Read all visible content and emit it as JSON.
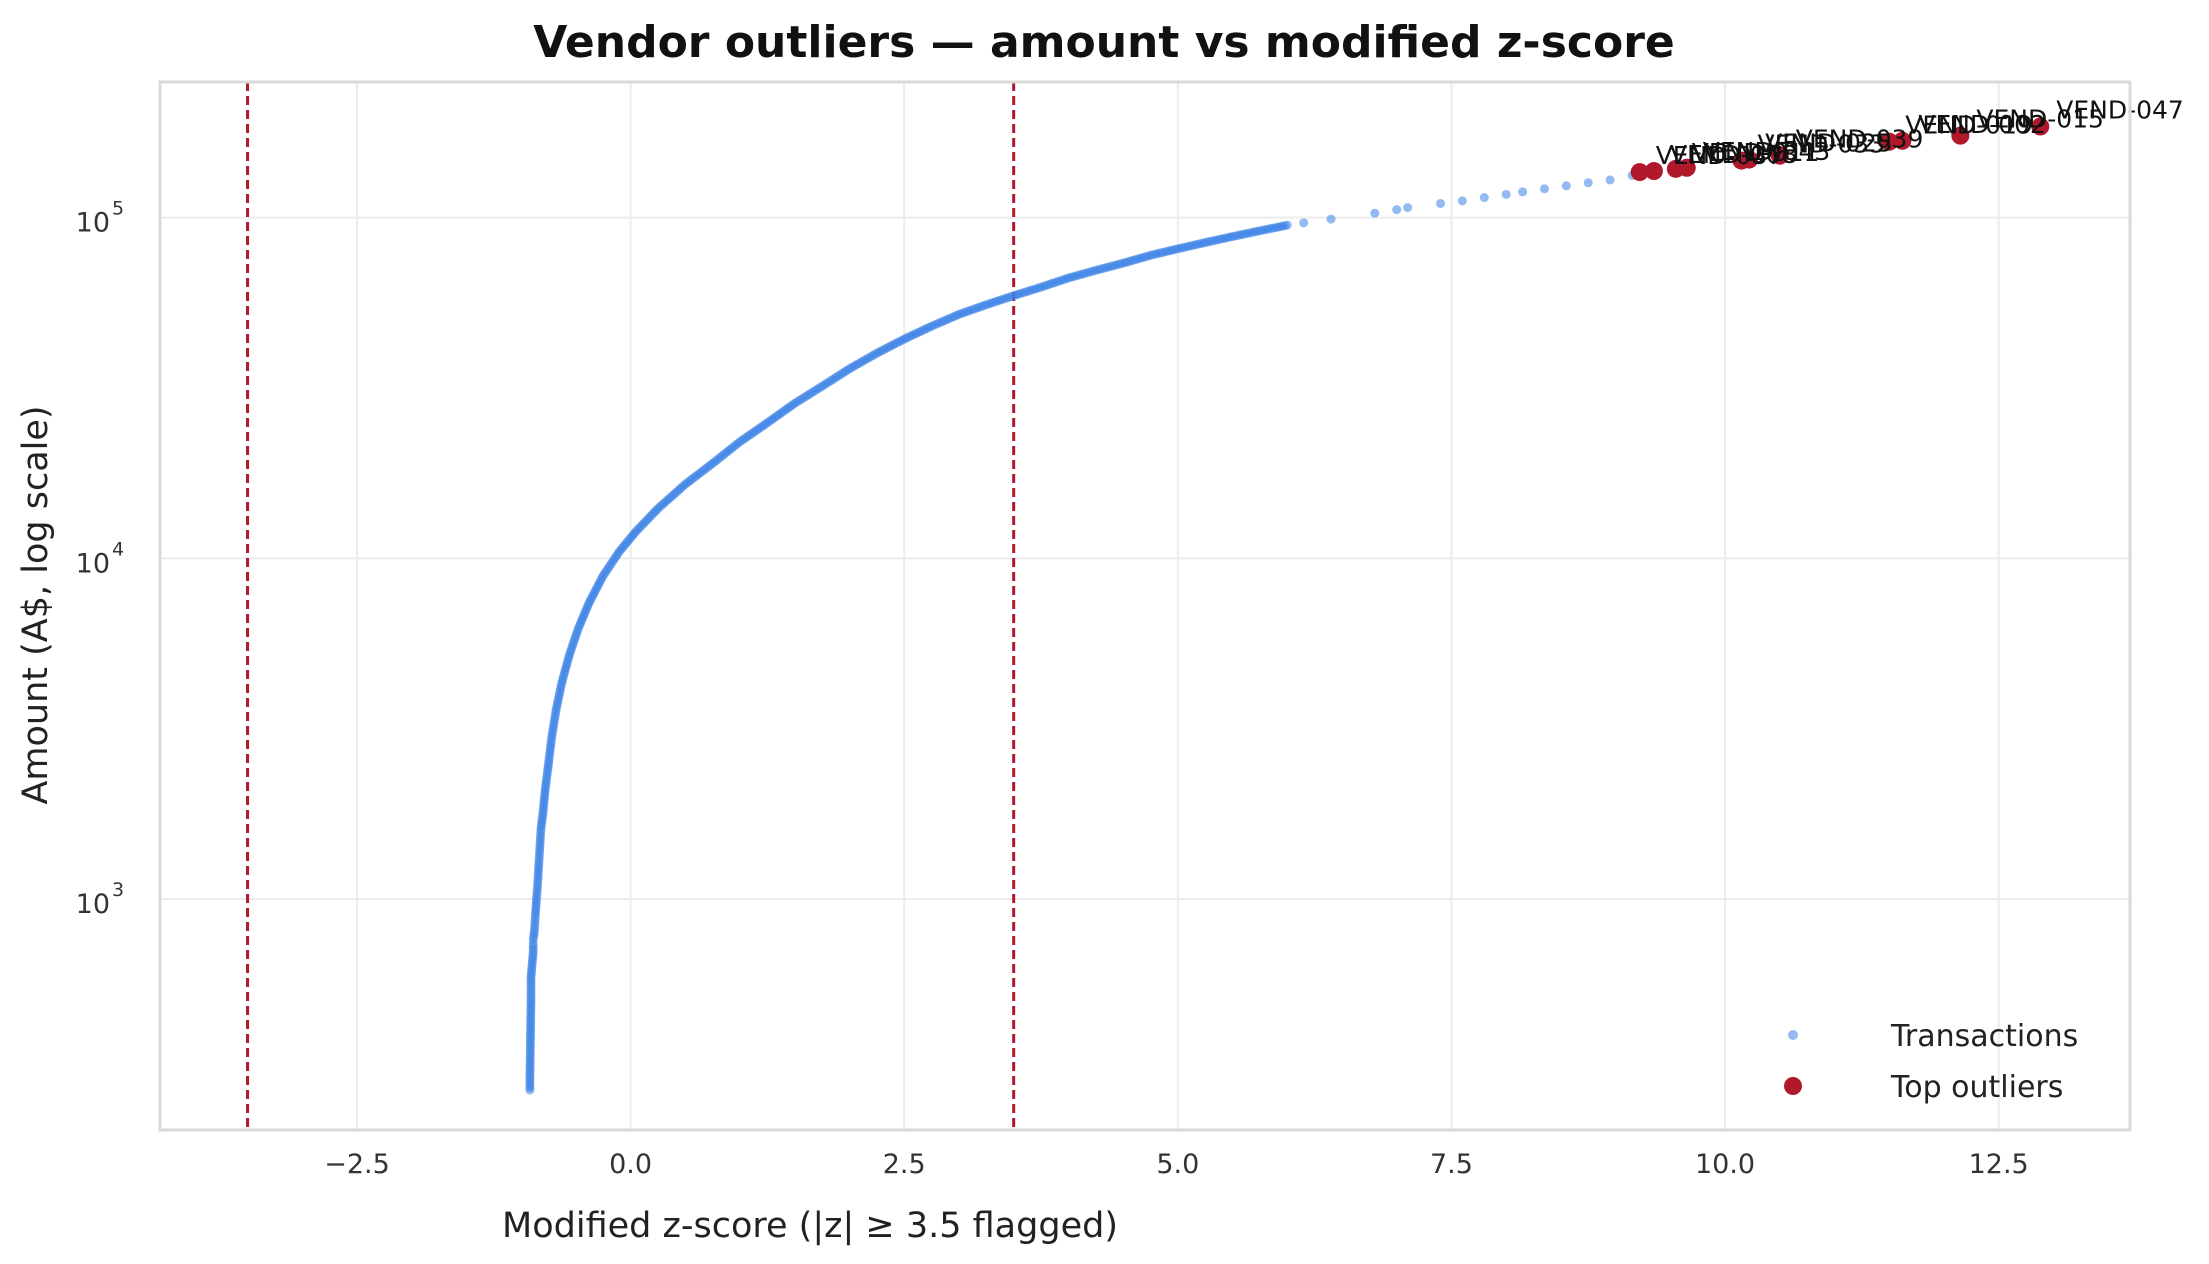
{
  "chart_data": {
    "type": "scatter",
    "title": "Vendor outliers — amount vs modified z-score",
    "xlabel": "Modified z-score (|z| ≥ 3.5 flagged)",
    "ylabel": "Amount (A$, log scale)",
    "xlim": [
      -4.3,
      13.7
    ],
    "ylim": [
      210,
      250000
    ],
    "yscale": "log",
    "grid": true,
    "legend_position": "bottom-right",
    "x_ticks": [
      {
        "value": -2.5,
        "label": "−2.5"
      },
      {
        "value": 0.0,
        "label": "0.0"
      },
      {
        "value": 2.5,
        "label": "2.5"
      },
      {
        "value": 5.0,
        "label": "5.0"
      },
      {
        "value": 7.5,
        "label": "7.5"
      },
      {
        "value": 10.0,
        "label": "10.0"
      },
      {
        "value": 12.5,
        "label": "12.5"
      }
    ],
    "y_ticks": [
      {
        "value": 1000,
        "base": "10",
        "exp": "3"
      },
      {
        "value": 10000,
        "base": "10",
        "exp": "4"
      },
      {
        "value": 100000,
        "base": "10",
        "exp": "5"
      }
    ],
    "threshold_lines": [
      {
        "x": -3.5,
        "color": "#b2182b"
      },
      {
        "x": 3.5,
        "color": "#b2182b"
      }
    ],
    "series": [
      {
        "name": "Transactions",
        "color": "#3b82e6",
        "points": [
          [
            -0.92,
            275
          ],
          [
            -0.92,
            300
          ],
          [
            -0.91,
            510
          ],
          [
            -0.91,
            560
          ],
          [
            -0.91,
            590
          ],
          [
            -0.89,
            700
          ],
          [
            -0.89,
            740
          ],
          [
            -0.89,
            760
          ],
          [
            -0.88,
            800
          ],
          [
            -0.87,
            900
          ],
          [
            -0.86,
            1000
          ],
          [
            -0.85,
            1100
          ],
          [
            -0.84,
            1250
          ],
          [
            -0.83,
            1400
          ],
          [
            -0.82,
            1600
          ],
          [
            -0.8,
            1800
          ],
          [
            -0.78,
            2100
          ],
          [
            -0.75,
            2500
          ],
          [
            -0.72,
            3000
          ],
          [
            -0.68,
            3600
          ],
          [
            -0.63,
            4300
          ],
          [
            -0.56,
            5200
          ],
          [
            -0.48,
            6200
          ],
          [
            -0.38,
            7400
          ],
          [
            -0.25,
            8900
          ],
          [
            -0.1,
            10500
          ],
          [
            0.05,
            12000
          ],
          [
            0.25,
            14000
          ],
          [
            0.5,
            16500
          ],
          [
            0.75,
            19000
          ],
          [
            1.0,
            22000
          ],
          [
            1.25,
            25000
          ],
          [
            1.5,
            28500
          ],
          [
            1.75,
            32000
          ],
          [
            2.0,
            36000
          ],
          [
            2.25,
            40000
          ],
          [
            2.5,
            44000
          ],
          [
            2.75,
            48000
          ],
          [
            3.0,
            52000
          ],
          [
            3.25,
            55500
          ],
          [
            3.5,
            59000
          ],
          [
            3.75,
            62500
          ],
          [
            4.0,
            66500
          ],
          [
            4.25,
            70000
          ],
          [
            4.5,
            73500
          ],
          [
            4.75,
            77500
          ],
          [
            5.0,
            81000
          ],
          [
            5.25,
            84500
          ],
          [
            5.5,
            88000
          ],
          [
            5.75,
            91500
          ],
          [
            6.0,
            95000
          ],
          [
            6.15,
            96500
          ],
          [
            6.4,
            99000
          ],
          [
            6.8,
            103000
          ],
          [
            7.0,
            105500
          ],
          [
            7.1,
            107000
          ],
          [
            7.4,
            110000
          ],
          [
            7.6,
            112000
          ],
          [
            7.8,
            114500
          ],
          [
            8.0,
            117000
          ],
          [
            8.15,
            119000
          ],
          [
            8.35,
            121500
          ],
          [
            8.55,
            124000
          ],
          [
            8.75,
            126500
          ],
          [
            8.95,
            129000
          ],
          [
            9.15,
            133000
          ]
        ]
      },
      {
        "name": "Top outliers",
        "color": "#b2182b",
        "points": [
          {
            "x": 9.22,
            "y": 136000,
            "label": "VEND-037"
          },
          {
            "x": 9.35,
            "y": 137000,
            "label": "VEND-008"
          },
          {
            "x": 9.55,
            "y": 139000,
            "label": "VEND-011"
          },
          {
            "x": 9.65,
            "y": 140000,
            "label": "VEND-043"
          },
          {
            "x": 10.15,
            "y": 147000,
            "label": "VEND-033"
          },
          {
            "x": 10.22,
            "y": 148000,
            "label": "VEND-025"
          },
          {
            "x": 10.5,
            "y": 152000,
            "label": "VEND-039"
          },
          {
            "x": 11.5,
            "y": 167000,
            "label": "VEND-019"
          },
          {
            "x": 11.62,
            "y": 168000,
            "label": "VEND-002"
          },
          {
            "x": 12.15,
            "y": 174000,
            "label": "VEND-015"
          },
          {
            "x": 12.88,
            "y": 185000,
            "label": "VEND-047"
          }
        ]
      }
    ]
  }
}
